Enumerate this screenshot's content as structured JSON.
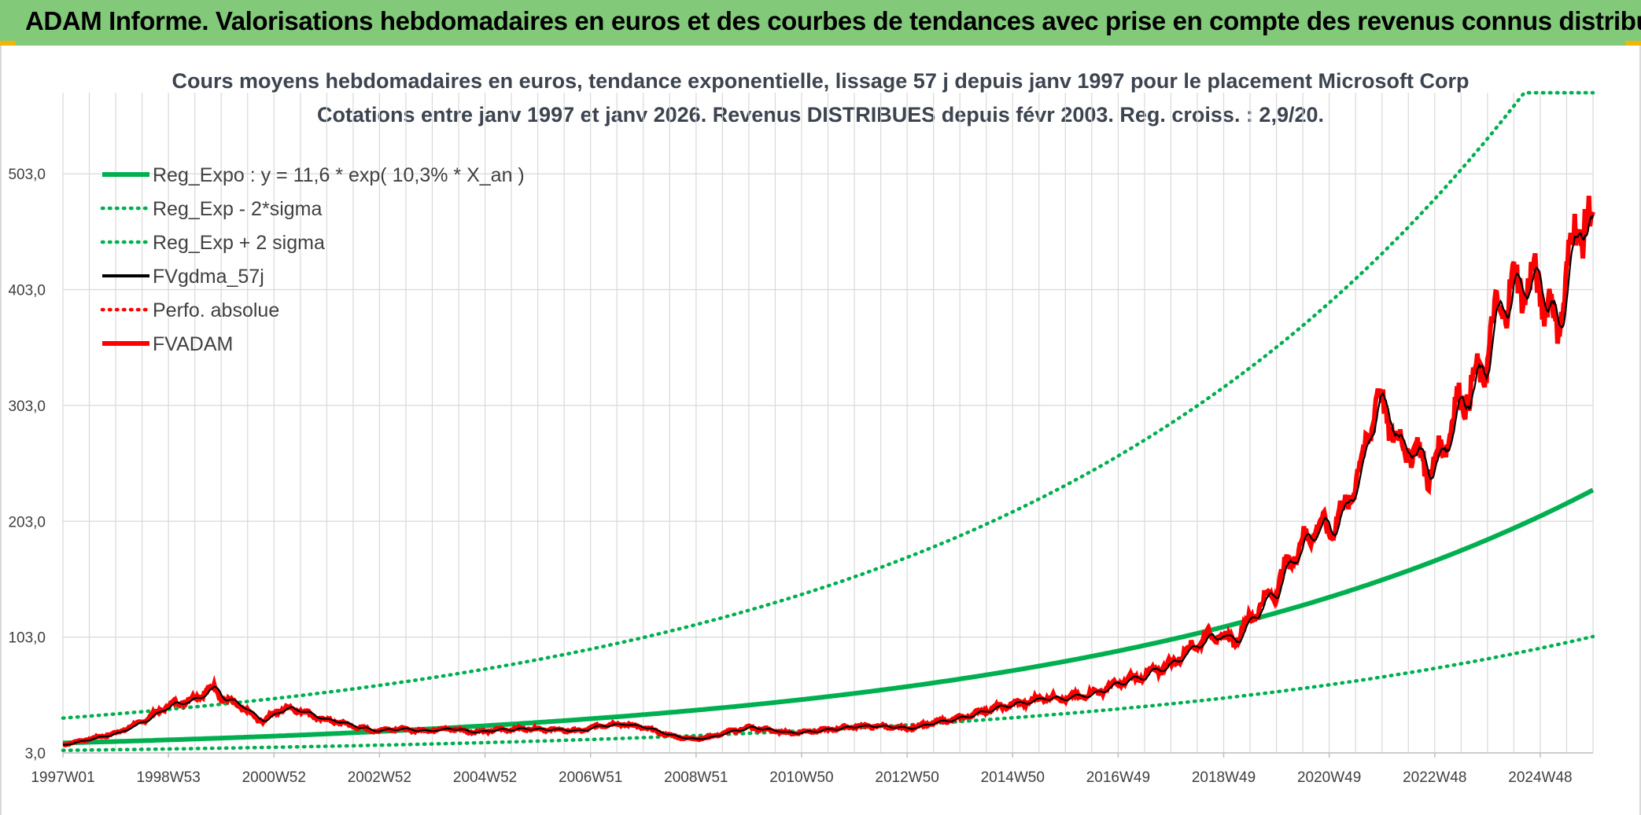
{
  "banner": {
    "title": "ADAM Informe. Valorisations hebdomadaires en euros et des courbes de tendances avec prise en compte des revenus connus distribués"
  },
  "colors": {
    "banner_bg": "#82c97a",
    "reg_expo": "#00b050",
    "sigma": "#00b050",
    "fvgdma": "#000000",
    "perfo": "#ff0000",
    "fvadam": "#ff0000",
    "grid": "#d9d9d9"
  },
  "chart_data": {
    "type": "line",
    "title": "Cours moyens hebdomadaires en euros, tendance exponentielle, lissage 57 j depuis janv 1997 pour le placement Microsoft Corp",
    "subtitle": "Cotations entre janv 1997 et janv 2026. Revenus DISTRIBUES depuis févr 2003. Reg. croiss. : 2,9/20.",
    "xlabel": "",
    "ylabel": "",
    "x_range": [
      1997.0,
      2026.0
    ],
    "ylim": [
      3.0,
      573.0
    ],
    "y_ticks": [
      "3,0",
      "103,0",
      "203,0",
      "303,0",
      "403,0",
      "503,0"
    ],
    "y_tick_values": [
      3,
      103,
      203,
      303,
      403,
      503
    ],
    "x_ticks": [
      "1997W01",
      "1998W53",
      "2000W52",
      "2002W52",
      "2004W52",
      "2006W51",
      "2008W51",
      "2010W50",
      "2012W50",
      "2014W50",
      "2016W49",
      "2018W49",
      "2020W49",
      "2022W48",
      "2024W48"
    ],
    "x_tick_values": [
      1997.0,
      1999.0,
      2001.0,
      2003.0,
      2005.0,
      2007.0,
      2009.0,
      2011.0,
      2013.0,
      2015.0,
      2017.0,
      2019.0,
      2021.0,
      2023.0,
      2025.0
    ],
    "grid": true,
    "legend_position": "top-left",
    "regression": {
      "a": 11.6,
      "rate": 0.103,
      "sigma_factor_low": 0.45,
      "sigma_factor_high": 2.85,
      "cap": 573
    },
    "series": [
      {
        "name": "Reg_Expo : y = 11,6 * exp( 10,3% *  X_an )",
        "style": "solid-thick",
        "color": "#00b050",
        "kind": "reg"
      },
      {
        "name": "Reg_Exp - 2*sigma",
        "style": "dotted",
        "color": "#00b050",
        "kind": "low"
      },
      {
        "name": "Reg_Exp + 2 sigma",
        "style": "dotted",
        "color": "#00b050",
        "kind": "high"
      },
      {
        "name": "FVgdma_57j",
        "style": "solid",
        "color": "#000000",
        "kind": "ma"
      },
      {
        "name": "Perfo. absolue",
        "style": "dotted",
        "color": "#ff0000",
        "kind": "perfo"
      },
      {
        "name": "FVADAM",
        "style": "solid-thick",
        "color": "#ff0000",
        "kind": "price"
      }
    ],
    "price_points": [
      [
        1997.0,
        10
      ],
      [
        1997.5,
        15
      ],
      [
        1998.0,
        20
      ],
      [
        1998.5,
        30
      ],
      [
        1999.0,
        44
      ],
      [
        1999.5,
        50
      ],
      [
        1999.7,
        56
      ],
      [
        1999.9,
        60
      ],
      [
        2000.0,
        50
      ],
      [
        2000.3,
        45
      ],
      [
        2000.6,
        35
      ],
      [
        2000.8,
        30
      ],
      [
        2001.0,
        38
      ],
      [
        2001.3,
        42
      ],
      [
        2001.6,
        38
      ],
      [
        2001.9,
        32
      ],
      [
        2002.2,
        30
      ],
      [
        2002.5,
        26
      ],
      [
        2002.9,
        22
      ],
      [
        2003.3,
        24
      ],
      [
        2003.8,
        22
      ],
      [
        2004.3,
        24
      ],
      [
        2004.8,
        21
      ],
      [
        2005.3,
        23
      ],
      [
        2005.8,
        24
      ],
      [
        2006.3,
        23
      ],
      [
        2006.8,
        22
      ],
      [
        2007.2,
        27
      ],
      [
        2007.6,
        28
      ],
      [
        2008.0,
        25
      ],
      [
        2008.5,
        18
      ],
      [
        2008.9,
        15
      ],
      [
        2009.2,
        16
      ],
      [
        2009.6,
        21
      ],
      [
        2010.0,
        25
      ],
      [
        2010.5,
        22
      ],
      [
        2010.8,
        20
      ],
      [
        2011.0,
        21
      ],
      [
        2011.5,
        23
      ],
      [
        2012.0,
        26
      ],
      [
        2012.5,
        26
      ],
      [
        2013.0,
        24
      ],
      [
        2013.5,
        29
      ],
      [
        2014.0,
        33
      ],
      [
        2014.5,
        40
      ],
      [
        2015.0,
        45
      ],
      [
        2015.3,
        47
      ],
      [
        2015.6,
        51
      ],
      [
        2016.0,
        50
      ],
      [
        2016.5,
        54
      ],
      [
        2017.0,
        63
      ],
      [
        2017.5,
        70
      ],
      [
        2018.0,
        80
      ],
      [
        2018.4,
        95
      ],
      [
        2018.8,
        105
      ],
      [
        2019.2,
        100
      ],
      [
        2019.6,
        125
      ],
      [
        2020.0,
        145
      ],
      [
        2020.2,
        165
      ],
      [
        2020.5,
        185
      ],
      [
        2020.8,
        200
      ],
      [
        2021.0,
        195
      ],
      [
        2021.3,
        215
      ],
      [
        2021.6,
        250
      ],
      [
        2021.9,
        310
      ],
      [
        2022.1,
        295
      ],
      [
        2022.3,
        270
      ],
      [
        2022.6,
        265
      ],
      [
        2022.9,
        245
      ],
      [
        2023.1,
        260
      ],
      [
        2023.4,
        300
      ],
      [
        2023.7,
        320
      ],
      [
        2023.9,
        330
      ],
      [
        2024.1,
        370
      ],
      [
        2024.4,
        400
      ],
      [
        2024.7,
        410
      ],
      [
        2025.0,
        405
      ],
      [
        2025.2,
        390
      ],
      [
        2025.3,
        360
      ],
      [
        2025.5,
        420
      ],
      [
        2025.7,
        455
      ],
      [
        2025.85,
        465
      ],
      [
        2026.0,
        450
      ]
    ]
  }
}
